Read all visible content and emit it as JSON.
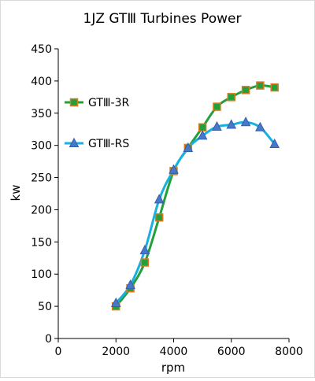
{
  "chart_data": {
    "type": "line",
    "title": "1JZ GTⅢ Turbines Power",
    "xlabel": "rpm",
    "ylabel": "kw",
    "xlim": [
      0,
      8000
    ],
    "ylim": [
      0,
      450
    ],
    "xticks": [
      0,
      2000,
      4000,
      6000,
      8000
    ],
    "yticks": [
      0,
      50,
      100,
      150,
      200,
      250,
      300,
      350,
      400,
      450
    ],
    "grid": false,
    "legend_position": "left",
    "series": [
      {
        "name": "GTⅢ-3R",
        "color": "#22a03a",
        "marker": "square",
        "marker_fill": "#22a03a",
        "marker_edge": "#e07820",
        "x": [
          2000,
          2500,
          3000,
          3500,
          4000,
          4500,
          5000,
          5500,
          6000,
          6500,
          7000,
          7500
        ],
        "values": [
          50,
          78,
          118,
          188,
          260,
          296,
          328,
          360,
          375,
          386,
          393,
          390
        ]
      },
      {
        "name": "GTⅢ-RS",
        "color": "#18b0e0",
        "marker": "triangle",
        "marker_fill": "#4a78c8",
        "marker_edge": "#3060b0",
        "x": [
          2000,
          2500,
          3000,
          3500,
          4000,
          4500,
          5000,
          5500,
          6000,
          6500,
          7000,
          7500
        ],
        "values": [
          55,
          83,
          137,
          216,
          262,
          296,
          315,
          329,
          332,
          336,
          328,
          302
        ]
      }
    ]
  }
}
